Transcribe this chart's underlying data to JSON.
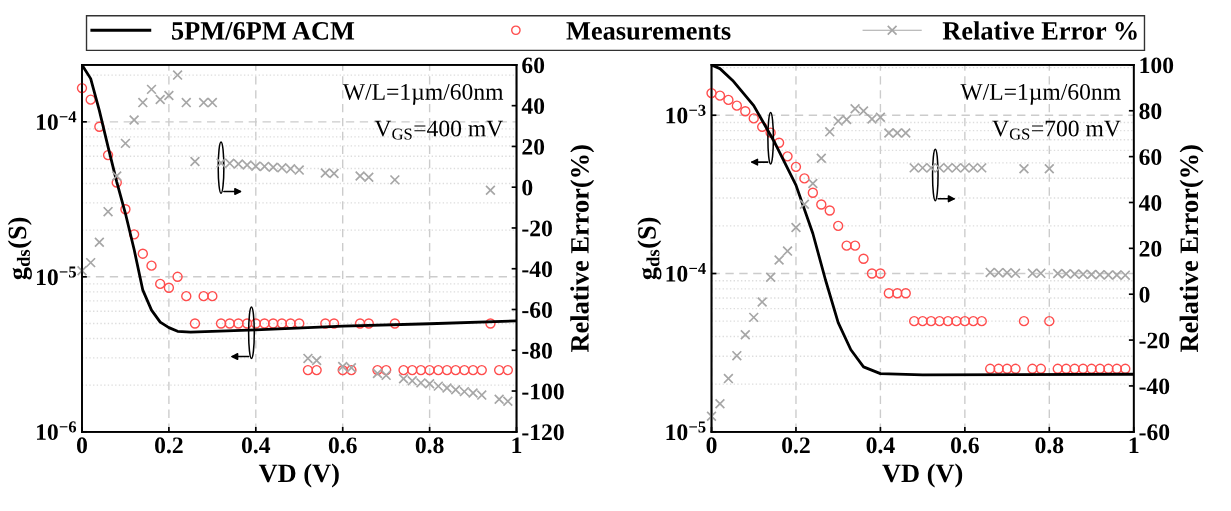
{
  "chart_data": [
    {
      "type": "scatter",
      "xlabel": "VD (V)",
      "ylabel": "g$_{ds}$(S)",
      "y2label": "Relative Error(%)",
      "log": "y",
      "grid": true,
      "legend": "top",
      "xlim": [
        0,
        1
      ],
      "xticks": [
        0,
        0.2,
        0.4,
        0.6,
        0.8,
        1
      ],
      "ylim": [
        1e-06,
        0.000233
      ],
      "yticks": [
        {
          "value": 1e-06,
          "label": "10$^{−6}$"
        },
        {
          "value": 1e-05,
          "label": "10$^{−5}$"
        },
        {
          "value": 0.0001,
          "label": "10$^{−4}$"
        }
      ],
      "y2lim": [
        -120,
        60
      ],
      "y2ticks": [
        -120,
        -100,
        -80,
        -60,
        -40,
        -20,
        0,
        20,
        40,
        60
      ],
      "annotations": [
        "W/L=1µm/60nm",
        "V$_{GS}$=400 mV"
      ],
      "series": [
        {
          "name": "5PM/6PM ACM",
          "type": "line",
          "color": "#000000",
          "marker": "none",
          "line_style": "solid",
          "x": [
            0,
            0.02,
            0.04,
            0.06,
            0.08,
            0.1,
            0.12,
            0.14,
            0.16,
            0.18,
            0.2,
            0.22,
            0.25,
            0.3,
            0.4,
            0.6,
            0.8,
            1.0
          ],
          "values": [
            0.000233,
            0.00019,
            0.000118,
            6.9e-05,
            4.1e-05,
            2.56e-05,
            1.5e-05,
            8.2e-06,
            6.1e-06,
            5.1e-06,
            4.7e-06,
            4.45e-06,
            4.4e-06,
            4.45e-06,
            4.55e-06,
            4.8e-06,
            4.98e-06,
            5.2e-06
          ]
        },
        {
          "name": "Measurements",
          "type": "scatter",
          "color": "#ff4d4d",
          "marker": "circle",
          "x": [
            0,
            0.02,
            0.04,
            0.06,
            0.08,
            0.1,
            0.12,
            0.14,
            0.16,
            0.18,
            0.2,
            0.22,
            0.24,
            0.26,
            0.28,
            0.3,
            0.32,
            0.34,
            0.36,
            0.38,
            0.4,
            0.42,
            0.44,
            0.46,
            0.48,
            0.5,
            0.52,
            0.54,
            0.56,
            0.58,
            0.6,
            0.62,
            0.64,
            0.66,
            0.68,
            0.7,
            0.72,
            0.74,
            0.76,
            0.78,
            0.8,
            0.82,
            0.84,
            0.86,
            0.88,
            0.9,
            0.92,
            0.94,
            0.96,
            0.98
          ],
          "values": [
            0.000165,
            0.000139,
            9.3e-05,
            6.1e-05,
            4.06e-05,
            2.73e-05,
            1.88e-05,
            1.41e-05,
            1.18e-05,
            9e-06,
            8.5e-06,
            1e-05,
            7.5e-06,
            5e-06,
            7.5e-06,
            7.5e-06,
            5e-06,
            5e-06,
            5e-06,
            5e-06,
            5e-06,
            5e-06,
            5e-06,
            5e-06,
            5e-06,
            5e-06,
            2.5e-06,
            2.5e-06,
            5e-06,
            5e-06,
            2.5e-06,
            2.5e-06,
            5e-06,
            5e-06,
            2.5e-06,
            2.5e-06,
            5e-06,
            2.5e-06,
            2.5e-06,
            2.5e-06,
            2.5e-06,
            2.5e-06,
            2.5e-06,
            2.5e-06,
            2.5e-06,
            2.5e-06,
            2.5e-06,
            5e-06,
            2.5e-06,
            2.5e-06
          ]
        },
        {
          "name": "Relative Error %",
          "type": "scatter",
          "axis": "y2",
          "color": "#a6a6a6",
          "marker": "cross",
          "x": [
            0,
            0.02,
            0.04,
            0.06,
            0.08,
            0.1,
            0.12,
            0.14,
            0.16,
            0.18,
            0.2,
            0.22,
            0.24,
            0.26,
            0.28,
            0.3,
            0.32,
            0.34,
            0.36,
            0.38,
            0.4,
            0.42,
            0.44,
            0.46,
            0.48,
            0.5,
            0.52,
            0.54,
            0.56,
            0.58,
            0.6,
            0.62,
            0.64,
            0.66,
            0.68,
            0.7,
            0.72,
            0.74,
            0.76,
            0.78,
            0.8,
            0.82,
            0.84,
            0.86,
            0.88,
            0.9,
            0.92,
            0.94,
            0.96,
            0.98
          ],
          "values": [
            -41,
            -37,
            -27,
            -12,
            5.5,
            21.5,
            33,
            41.5,
            48,
            43,
            45,
            55,
            41.5,
            12.6,
            41.5,
            41.5,
            11.9,
            11.7,
            11.4,
            10.9,
            10.3,
            10.2,
            9.8,
            9.5,
            9.0,
            8.4,
            -84,
            -85,
            7.0,
            6.7,
            -88,
            -88.6,
            5.5,
            4.9,
            -91.4,
            -92.3,
            3.6,
            -94,
            -95,
            -96,
            -96.4,
            -97.6,
            -98.5,
            -99.4,
            -100.3,
            -101,
            -102,
            -1.5,
            -104,
            -105
          ]
        }
      ]
    },
    {
      "type": "scatter",
      "xlabel": "VD (V)",
      "ylabel": "g$_{ds}$(S)",
      "y2label": "Relative Error(%)",
      "log": "y",
      "grid": true,
      "xlim": [
        0,
        1
      ],
      "xticks": [
        0,
        0.2,
        0.4,
        0.6,
        0.8,
        1
      ],
      "ylim": [
        1e-05,
        0.00208
      ],
      "yticks": [
        {
          "value": 1e-05,
          "label": "10$^{−5}$"
        },
        {
          "value": 0.0001,
          "label": "10$^{−4}$"
        },
        {
          "value": 0.001,
          "label": "10$^{−3}$"
        }
      ],
      "y2lim": [
        -60,
        100
      ],
      "y2ticks": [
        -60,
        -40,
        -20,
        0,
        20,
        40,
        60,
        80,
        100
      ],
      "annotations": [
        "W/L=1µm/60nm",
        "V$_{GS}$=700 mV"
      ],
      "series": [
        {
          "type": "line",
          "color": "#000000",
          "marker": "none",
          "line_style": "solid",
          "x": [
            0,
            0.02,
            0.05,
            0.1,
            0.15,
            0.2,
            0.24,
            0.27,
            0.3,
            0.33,
            0.36,
            0.4,
            0.5,
            1.0
          ],
          "values": [
            0.00208,
            0.00197,
            0.00166,
            0.00115,
            0.00067,
            0.000362,
            0.000179,
            9.1e-05,
            4.9e-05,
            3.3e-05,
            2.57e-05,
            2.33e-05,
            2.29e-05,
            2.31e-05
          ]
        },
        {
          "type": "scatter",
          "color": "#ff4d4d",
          "marker": "circle",
          "x": [
            0,
            0.02,
            0.04,
            0.06,
            0.08,
            0.1,
            0.12,
            0.14,
            0.16,
            0.18,
            0.2,
            0.22,
            0.24,
            0.26,
            0.28,
            0.3,
            0.32,
            0.34,
            0.36,
            0.38,
            0.4,
            0.42,
            0.44,
            0.46,
            0.48,
            0.5,
            0.52,
            0.54,
            0.56,
            0.58,
            0.6,
            0.62,
            0.64,
            0.66,
            0.68,
            0.7,
            0.72,
            0.74,
            0.76,
            0.78,
            0.8,
            0.82,
            0.84,
            0.86,
            0.88,
            0.9,
            0.92,
            0.94,
            0.96,
            0.98
          ],
          "values": [
            0.00138,
            0.00133,
            0.00125,
            0.00115,
            0.00106,
            0.000955,
            0.000845,
            0.000776,
            0.00067,
            0.00055,
            0.000472,
            0.000399,
            0.000324,
            0.000273,
            0.00025,
            0.0002,
            0.00015,
            0.00015,
            0.000124,
            0.0001,
            0.0001,
            7.5e-05,
            7.5e-05,
            7.5e-05,
            5e-05,
            5e-05,
            5e-05,
            5e-05,
            5e-05,
            5e-05,
            5e-05,
            5e-05,
            5e-05,
            2.5e-05,
            2.5e-05,
            2.5e-05,
            2.5e-05,
            5e-05,
            2.5e-05,
            2.5e-05,
            5e-05,
            2.5e-05,
            2.5e-05,
            2.5e-05,
            2.5e-05,
            2.5e-05,
            2.5e-05,
            2.5e-05,
            2.5e-05,
            2.5e-05
          ]
        },
        {
          "type": "scatter",
          "axis": "y2",
          "color": "#a6a6a6",
          "marker": "cross",
          "x": [
            0,
            0.02,
            0.04,
            0.06,
            0.08,
            0.1,
            0.12,
            0.14,
            0.16,
            0.18,
            0.2,
            0.22,
            0.24,
            0.26,
            0.28,
            0.3,
            0.32,
            0.34,
            0.36,
            0.38,
            0.4,
            0.42,
            0.44,
            0.46,
            0.48,
            0.5,
            0.52,
            0.54,
            0.56,
            0.58,
            0.6,
            0.62,
            0.64,
            0.66,
            0.68,
            0.7,
            0.72,
            0.74,
            0.76,
            0.78,
            0.8,
            0.82,
            0.84,
            0.86,
            0.88,
            0.9,
            0.92,
            0.94,
            0.96,
            0.98
          ],
          "values": [
            -53.2,
            -47.8,
            -36.8,
            -26.8,
            -17.7,
            -10.1,
            -3.4,
            7.4,
            14.9,
            18.8,
            29.1,
            39.2,
            48.3,
            59.3,
            70.8,
            75.5,
            76.2,
            80.9,
            79.9,
            76.4,
            77.2,
            70.3,
            70.3,
            70.3,
            55.1,
            55.1,
            55.1,
            55.1,
            55.1,
            55.1,
            55.1,
            55.1,
            55.1,
            9.5,
            9.4,
            9.4,
            9.1,
            54.7,
            9.1,
            9.1,
            54.7,
            9.0,
            8.9,
            8.8,
            8.7,
            8.6,
            8.5,
            8.4,
            8.4,
            8.3
          ]
        }
      ]
    }
  ]
}
